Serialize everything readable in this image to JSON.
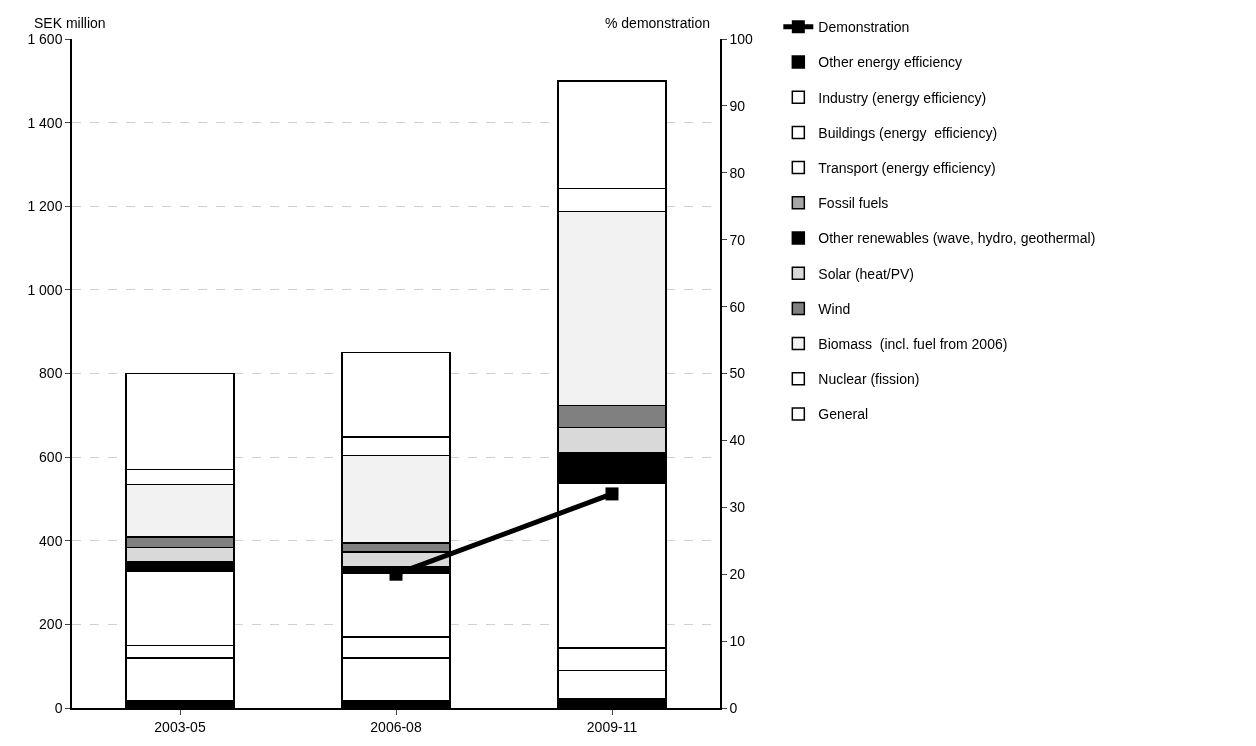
{
  "chart_data": {
    "type": "bar",
    "stacked": true,
    "ylabel": "SEK million",
    "y2label": "% demonstration",
    "categories": [
      "2003-05",
      "2006-08",
      "2009-11"
    ],
    "ylim": [
      0,
      1600
    ],
    "yticks": [
      0,
      200,
      400,
      600,
      800,
      {
        "value": 1000,
        "label": "1 000"
      },
      {
        "value": 1200,
        "label": "1 200"
      },
      {
        "value": 1400,
        "label": "1 400"
      },
      {
        "value": 1600,
        "label": "1 600"
      }
    ],
    "y2lim": [
      0,
      100
    ],
    "y2ticks": [
      0,
      10,
      20,
      30,
      40,
      50,
      60,
      70,
      80,
      90,
      100
    ],
    "grid": "y",
    "legend": "right",
    "series": [
      {
        "name": "Other energy efficiency",
        "color": "#000000",
        "values": [
          17,
          17,
          21
        ]
      },
      {
        "name": "Industry (energy efficiency)",
        "color": "#ffffff",
        "values": [
          103,
          103,
          69
        ]
      },
      {
        "name": "Buildings (energy  efficiency)",
        "color": "#ffffff",
        "values": [
          30,
          50,
          53
        ]
      },
      {
        "name": "Transport (energy efficiency)",
        "color": "#ffffff",
        "values": [
          176,
          152,
          394
        ]
      },
      {
        "name": "Fossil fuels",
        "color": "#a6a6a6",
        "values": [
          0,
          0,
          0
        ]
      },
      {
        "name": "Other renewables (wave, hydro, geothermal)",
        "color": "#000000",
        "values": [
          23,
          16,
          74
        ]
      },
      {
        "name": "Solar (heat/PV)",
        "color": "#d9d9d9",
        "values": [
          35,
          35,
          60
        ]
      },
      {
        "name": "Wind",
        "color": "#808080",
        "values": [
          25,
          22,
          52
        ]
      },
      {
        "name": "Biomass  (incl. fuel from 2006)",
        "color": "#f2f2f2",
        "values": [
          125,
          209,
          465
        ]
      },
      {
        "name": "Nuclear (fission)",
        "color": "#ffffff",
        "values": [
          36,
          44,
          54
        ]
      },
      {
        "name": "General",
        "color": "#ffffff",
        "values": [
          230,
          202,
          258
        ]
      },
      {
        "name": "Demonstration",
        "type": "line",
        "axis": "y2",
        "color": "#000000",
        "marker": "square",
        "values": [
          null,
          20,
          32
        ]
      }
    ]
  }
}
